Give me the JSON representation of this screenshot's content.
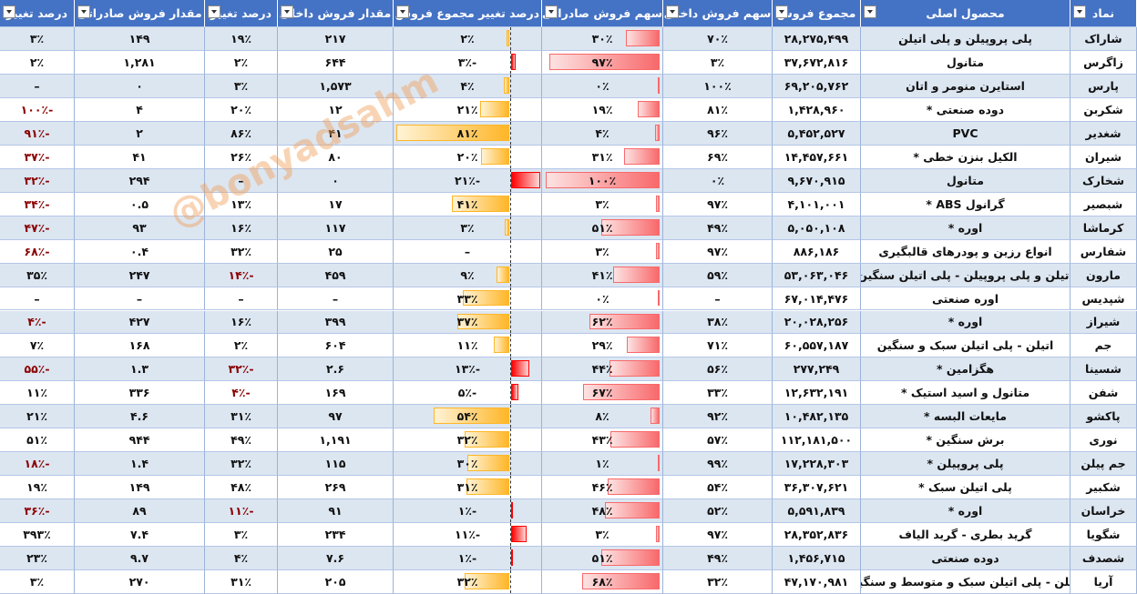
{
  "watermark": "@bonyadsahm",
  "table": {
    "header": [
      "نماد",
      "محصول اصلی",
      "مجموع فروش",
      "سهم فروش داخلی",
      "سهم فروش صادراتی",
      "درصد تغییر مجموع فروش",
      "مقدار فروش داخلی",
      "درصد تغییر",
      "مقدار فروش صادراتی",
      "درصد تغییر"
    ],
    "rows": [
      [
        "شاراک",
        "پلی پروپیلن و پلی اتیلن",
        "۲۸,۲۷۵,۴۹۹",
        "۷۰٪",
        "۳۰٪",
        "۲٪",
        "۲۱۷",
        "۱۹٪",
        "۱۴۹",
        "۳٪"
      ],
      [
        "زاگرس",
        "متانول",
        "۳۷,۶۷۲,۸۱۶",
        "۳٪",
        "۹۷٪",
        "-۳٪",
        "۶۴۴",
        "۲٪",
        "۱,۲۸۱",
        "۲٪"
      ],
      [
        "پارس",
        "استایرن منومر و اتان",
        "۶۹,۲۰۵,۷۶۲",
        "۱۰۰٪",
        "۰٪",
        "۴٪",
        "۱,۵۷۳",
        "۳٪",
        "۰",
        "–"
      ],
      [
        "شکربن",
        "دوده صنعتی *",
        "۱,۴۲۸,۹۶۰",
        "۸۱٪",
        "۱۹٪",
        "۲۱٪",
        "۱۲",
        "۲۰٪",
        "۴",
        "-۱۰۰٪"
      ],
      [
        "شغدیر",
        "PVC",
        "۵,۴۵۲,۵۲۷",
        "۹۶٪",
        "۴٪",
        "۸۱٪",
        "۴۱",
        "۸۶٪",
        "۲",
        "-۹۱٪"
      ],
      [
        "شیران",
        "الکیل بنزن خطی *",
        "۱۴,۴۵۷,۶۶۱",
        "۶۹٪",
        "۳۱٪",
        "۲۰٪",
        "۸۰",
        "۲۶٪",
        "۴۱",
        "-۳۷٪"
      ],
      [
        "شخارک",
        "متانول",
        "۹,۶۷۰,۹۱۵",
        "۰٪",
        "۱۰۰٪",
        "-۲۱٪",
        "۰",
        "–",
        "۲۹۴",
        "-۳۲٪"
      ],
      [
        "شبصیر",
        "گرانول ABS *",
        "۴,۱۰۱,۰۰۱",
        "۹۷٪",
        "۳٪",
        "۴۱٪",
        "۱۷",
        "۱۳٪",
        "۰.۵",
        "-۳۴٪"
      ],
      [
        "کرماشا",
        "اوره *",
        "۵,۰۵۰,۱۰۸",
        "۴۹٪",
        "۵۱٪",
        "۳٪",
        "۱۱۷",
        "۱۶٪",
        "۹۳",
        "-۴۷٪"
      ],
      [
        "شفارس",
        "انواع رزین و پودرهای قالبگیری",
        "۸۸۶,۱۸۶",
        "۹۷٪",
        "۳٪",
        "–",
        "۲۵",
        "۳۲٪",
        "۰.۴",
        "-۶۸٪"
      ],
      [
        "مارون",
        "اتیلن و پلی پروپیلن - پلی اتیلن سنگین",
        "۵۳,۰۶۳,۰۴۶",
        "۵۹٪",
        "۴۱٪",
        "۹٪",
        "۴۵۹",
        "-۱۴٪",
        "۲۴۷",
        "۳۵٪"
      ],
      [
        "شپدیس",
        "اوره صنعتی",
        "۶۷,۰۱۴,۴۷۶",
        "–",
        "۰٪",
        "۳۳٪",
        "–",
        "–",
        "–",
        "–"
      ],
      [
        "شیراز",
        "اوره *",
        "۲۰,۰۲۸,۲۵۶",
        "۳۸٪",
        "۶۲٪",
        "۳۷٪",
        "۳۹۹",
        "۱۶٪",
        "۴۲۷",
        "-۴٪"
      ],
      [
        "جم",
        "اتیلن - پلی اتیلن سبک و سنگین",
        "۶۰,۵۵۷,۱۸۷",
        "۷۱٪",
        "۲۹٪",
        "۱۱٪",
        "۶۰۴",
        "۲٪",
        "۱۶۸",
        "۷٪"
      ],
      [
        "شسینا",
        "هگزامین *",
        "۲۷۷,۲۴۹",
        "۵۶٪",
        "۴۴٪",
        "-۱۳٪",
        "۲.۶",
        "-۳۲٪",
        "۱.۳",
        "-۵۵٪"
      ],
      [
        "شفن",
        "متانول و اسید استیک *",
        "۱۲,۶۳۲,۱۹۱",
        "۳۳٪",
        "۶۷٪",
        "-۵٪",
        "۱۶۹",
        "-۴٪",
        "۳۳۶",
        "۱۱٪"
      ],
      [
        "پاکشو",
        "مایعات البسه *",
        "۱۰,۴۸۲,۱۳۵",
        "۹۲٪",
        "۸٪",
        "۵۴٪",
        "۹۷",
        "۳۱٪",
        "۴.۶",
        "۲۱٪"
      ],
      [
        "نوری",
        "برش سنگین *",
        "۱۱۲,۱۸۱,۵۰۰",
        "۵۷٪",
        "۴۳٪",
        "۳۲٪",
        "۱,۱۹۱",
        "۴۹٪",
        "۹۴۴",
        "۵۱٪"
      ],
      [
        "جم پیلن",
        "پلی پروپیلن *",
        "۱۷,۲۲۸,۳۰۳",
        "۹۹٪",
        "۱٪",
        "۳۰٪",
        "۱۱۵",
        "۳۲٪",
        "۱.۴",
        "-۱۸٪"
      ],
      [
        "شکبیر",
        "پلی اتیلن سبک *",
        "۳۶,۳۰۷,۶۲۱",
        "۵۴٪",
        "۴۶٪",
        "۳۱٪",
        "۲۶۹",
        "۴۸٪",
        "۱۴۹",
        "۱۹٪"
      ],
      [
        "خراسان",
        "اوره *",
        "۵,۵۹۱,۸۳۹",
        "۵۲٪",
        "۴۸٪",
        "-۱٪",
        "۹۱",
        "-۱۱٪",
        "۸۹",
        "-۳۶٪"
      ],
      [
        "شگویا",
        "گرید بطری - گرید الیاف",
        "۲۸,۳۵۲,۸۳۶",
        "۹۷٪",
        "۳٪",
        "-۱۱٪",
        "۲۳۴",
        "۳٪",
        "۷.۴",
        "۳۹۳٪"
      ],
      [
        "شصدف",
        "دوده صنعتی",
        "۱,۴۵۶,۷۱۵",
        "۴۹٪",
        "۵۱٪",
        "-۱٪",
        "۷.۶",
        "۴٪",
        "۹.۷",
        "۲۳٪"
      ],
      [
        "آریا",
        "اتیلن - پلی اتیلن سبک و متوسط و سنگین",
        "۴۷,۱۷۰,۹۸۱",
        "۳۲٪",
        "۶۸٪",
        "۳۲٪",
        "۲۰۵",
        "۳۱٪",
        "۲۷۰",
        "۳٪"
      ]
    ]
  }
}
